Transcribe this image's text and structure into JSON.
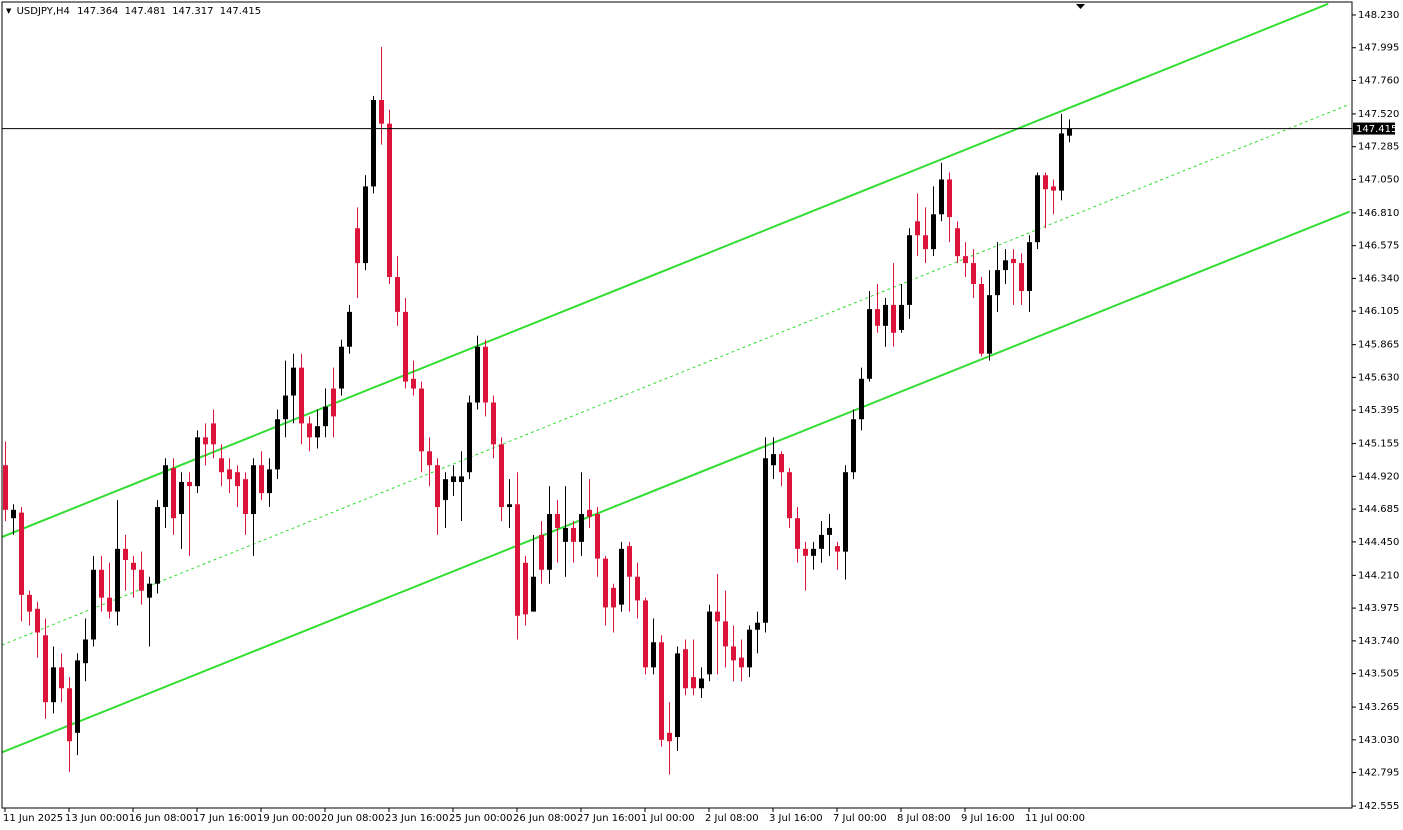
{
  "chart_data": {
    "type": "candlestick",
    "title": "USDJPY,H4",
    "categories": [
      "11 Jun 2025",
      null,
      null,
      null,
      null,
      null,
      null,
      null,
      "13 Jun 00:00",
      null,
      null,
      null,
      null,
      null,
      null,
      null,
      "16 Jun 08:00",
      null,
      null,
      null,
      null,
      null,
      null,
      null,
      "17 Jun 16:00",
      null,
      null,
      null,
      null,
      null,
      null,
      null,
      "19 Jun 00:00",
      null,
      null,
      null,
      null,
      null,
      null,
      null,
      "20 Jun 08:00",
      null,
      null,
      null,
      null,
      null,
      null,
      null,
      "23 Jun 16:00",
      null,
      null,
      null,
      null,
      null,
      null,
      null,
      "25 Jun 00:00",
      null,
      null,
      null,
      null,
      null,
      null,
      null,
      "26 Jun 08:00",
      null,
      null,
      null,
      null,
      null,
      null,
      null,
      "27 Jun 16:00",
      null,
      null,
      null,
      null,
      null,
      null,
      null,
      "1 Jul 00:00",
      null,
      null,
      null,
      null,
      null,
      null,
      null,
      "2 Jul 08:00",
      null,
      null,
      null,
      null,
      null,
      null,
      null,
      "3 Jul 16:00",
      null,
      null,
      null,
      null,
      null,
      null,
      null,
      "7 Jul 00:00",
      null,
      null,
      null,
      null,
      null,
      null,
      null,
      "8 Jul 08:00",
      null,
      null,
      null,
      null,
      null,
      null,
      null,
      "9 Jul 16:00",
      null,
      null,
      null,
      null,
      null,
      null,
      null,
      "11 Jul 00:00",
      null,
      null,
      null,
      null,
      null
    ],
    "open": [
      145.0,
      144.62,
      144.66,
      144.07,
      143.97,
      143.78,
      143.3,
      143.55,
      143.4,
      143.08,
      143.58,
      143.75,
      144.25,
      144.05,
      143.95,
      144.4,
      144.3,
      144.25,
      144.05,
      144.15,
      144.7,
      144.98,
      144.65,
      144.88,
      144.85,
      145.2,
      145.3,
      145.05,
      144.97,
      144.95,
      144.9,
      144.65,
      145.0,
      144.8,
      144.97,
      145.33,
      145.5,
      145.7,
      145.3,
      145.2,
      145.28,
      145.55,
      145.55,
      145.85,
      146.7,
      146.45,
      147.0,
      147.62,
      147.45,
      146.35,
      146.1,
      145.62,
      145.55,
      145.1,
      145.0,
      144.75,
      144.88,
      144.88,
      144.95,
      145.45,
      145.85,
      145.45,
      145.15,
      144.7,
      144.72,
      144.3,
      143.95,
      144.5,
      144.25,
      144.65,
      144.45,
      144.55,
      144.45,
      144.68,
      144.65,
      144.33,
      144.12,
      144.0,
      144.42,
      144.2,
      144.03,
      143.55,
      143.73,
      143.08,
      143.05,
      143.68,
      143.48,
      143.4,
      143.5,
      143.95,
      143.88,
      143.7,
      143.62,
      143.55,
      143.82,
      143.87,
      145.0,
      145.08,
      144.95,
      144.62,
      144.4,
      144.35,
      144.4,
      144.5,
      144.42,
      144.38,
      144.95,
      145.33,
      145.62,
      146.12,
      146.0,
      146.15,
      145.97,
      146.15,
      146.75,
      146.65,
      146.55,
      146.8,
      147.05,
      146.7,
      146.5,
      146.45,
      146.3,
      145.8,
      146.22,
      146.4,
      146.48,
      146.45,
      146.25,
      146.6,
      147.08,
      147.0,
      146.97,
      147.364
    ],
    "high": [
      145.17,
      144.72,
      144.7,
      144.1,
      144.02,
      143.9,
      143.7,
      143.65,
      143.48,
      143.65,
      143.9,
      144.35,
      144.35,
      144.3,
      144.75,
      144.5,
      144.35,
      144.38,
      144.2,
      144.75,
      145.05,
      145.05,
      144.95,
      144.95,
      145.25,
      145.3,
      145.4,
      145.15,
      145.05,
      145.0,
      144.95,
      145.05,
      145.1,
      145.05,
      145.4,
      145.75,
      145.8,
      145.8,
      145.35,
      145.4,
      145.55,
      145.7,
      145.9,
      146.15,
      146.85,
      147.08,
      147.65,
      148.0,
      147.55,
      146.5,
      146.2,
      145.75,
      145.6,
      145.2,
      145.05,
      144.95,
      145.0,
      145.1,
      145.5,
      145.93,
      145.9,
      145.5,
      145.2,
      144.9,
      144.95,
      144.35,
      144.5,
      144.6,
      144.85,
      144.75,
      144.85,
      144.6,
      144.95,
      144.9,
      144.7,
      144.35,
      144.15,
      144.45,
      144.45,
      144.3,
      144.05,
      143.9,
      143.78,
      143.3,
      143.7,
      143.75,
      143.75,
      143.55,
      144.0,
      144.22,
      144.1,
      143.85,
      143.75,
      143.85,
      143.95,
      145.2,
      145.2,
      145.1,
      144.98,
      144.7,
      144.45,
      144.45,
      144.6,
      144.65,
      144.45,
      145.0,
      145.4,
      145.7,
      146.25,
      146.3,
      146.2,
      146.45,
      146.3,
      146.7,
      146.95,
      146.85,
      147.0,
      147.17,
      147.1,
      146.75,
      146.6,
      146.55,
      146.35,
      146.4,
      146.6,
      146.55,
      146.55,
      146.52,
      146.65,
      147.1,
      147.1,
      147.05,
      147.52,
      147.481
    ],
    "low": [
      144.6,
      144.5,
      143.88,
      143.85,
      143.62,
      143.18,
      143.22,
      143.3,
      142.8,
      142.92,
      143.45,
      143.7,
      143.95,
      143.9,
      143.85,
      144.1,
      144.05,
      144.0,
      143.7,
      144.08,
      144.55,
      144.5,
      144.4,
      144.35,
      144.8,
      145.0,
      145.05,
      144.85,
      144.8,
      144.7,
      144.5,
      144.35,
      144.75,
      144.7,
      144.9,
      145.2,
      145.3,
      145.15,
      145.1,
      145.12,
      145.2,
      145.2,
      145.5,
      145.8,
      146.2,
      146.4,
      146.95,
      147.3,
      146.3,
      146.0,
      145.55,
      145.5,
      144.95,
      144.85,
      144.5,
      144.55,
      144.78,
      144.6,
      144.9,
      145.4,
      145.35,
      145.05,
      144.6,
      144.55,
      143.75,
      143.85,
      143.95,
      144.15,
      144.15,
      144.3,
      144.2,
      144.3,
      144.35,
      144.55,
      144.2,
      143.85,
      143.8,
      143.95,
      143.95,
      143.9,
      143.5,
      143.5,
      142.98,
      142.78,
      142.95,
      143.35,
      143.35,
      143.33,
      143.45,
      143.5,
      143.55,
      143.45,
      143.45,
      143.48,
      143.65,
      143.8,
      144.9,
      144.85,
      144.55,
      144.3,
      144.1,
      144.25,
      144.3,
      144.35,
      144.25,
      144.18,
      144.9,
      145.25,
      145.6,
      145.95,
      145.85,
      145.85,
      145.95,
      146.05,
      146.5,
      146.45,
      146.5,
      146.75,
      146.6,
      146.45,
      146.35,
      146.2,
      145.78,
      145.75,
      146.1,
      146.3,
      146.15,
      146.15,
      146.1,
      146.55,
      146.7,
      146.8,
      146.9,
      147.317
    ],
    "close": [
      144.68,
      144.68,
      144.07,
      143.95,
      143.8,
      143.3,
      143.55,
      143.4,
      143.02,
      143.6,
      143.75,
      144.25,
      144.05,
      143.95,
      144.4,
      144.32,
      144.25,
      144.1,
      144.15,
      144.7,
      145.0,
      144.62,
      144.88,
      144.85,
      145.2,
      145.15,
      145.15,
      144.95,
      144.9,
      144.85,
      144.65,
      145.0,
      144.8,
      144.97,
      145.33,
      145.5,
      145.7,
      145.3,
      145.2,
      145.28,
      145.42,
      145.35,
      145.85,
      146.1,
      146.45,
      147.0,
      147.62,
      147.45,
      146.35,
      146.1,
      145.6,
      145.55,
      145.1,
      145.0,
      144.7,
      144.9,
      144.92,
      144.92,
      145.45,
      145.85,
      145.45,
      145.15,
      144.7,
      144.72,
      143.92,
      143.93,
      144.2,
      144.25,
      144.65,
      144.55,
      144.55,
      144.45,
      144.65,
      144.63,
      144.33,
      143.98,
      143.98,
      144.4,
      144.2,
      144.03,
      143.55,
      143.73,
      143.03,
      143.02,
      143.65,
      143.4,
      143.4,
      143.47,
      143.95,
      143.88,
      143.7,
      143.6,
      143.55,
      143.82,
      143.87,
      145.05,
      145.08,
      144.95,
      144.62,
      144.4,
      144.35,
      144.4,
      144.5,
      144.55,
      144.38,
      144.95,
      145.33,
      145.62,
      146.12,
      146.0,
      146.15,
      145.95,
      146.15,
      146.65,
      146.65,
      146.55,
      146.8,
      147.05,
      146.78,
      146.5,
      146.45,
      146.3,
      145.8,
      146.22,
      146.4,
      146.47,
      146.45,
      146.25,
      146.6,
      147.08,
      146.98,
      146.97,
      147.38,
      147.415
    ],
    "up_color": "#000000",
    "down_color": "#dc143c",
    "ylim": [
      142.541,
      148.323
    ],
    "yticks": [
      {
        "value": 148.23,
        "label": "148.230"
      },
      147.995,
      {
        "value": 147.76,
        "label": "147.760"
      },
      {
        "value": 147.52,
        "label": "147.520"
      },
      147.285,
      {
        "value": 147.05,
        "label": "147.050"
      },
      {
        "value": 146.81,
        "label": "146.810"
      },
      146.575,
      {
        "value": 146.34,
        "label": "146.340"
      },
      146.105,
      145.865,
      {
        "value": 145.63,
        "label": "145.630"
      },
      145.395,
      145.155,
      {
        "value": 144.92,
        "label": "144.920"
      },
      144.685,
      {
        "value": 144.45,
        "label": "144.450"
      },
      {
        "value": 144.21,
        "label": "144.210"
      },
      143.975,
      {
        "value": 143.74,
        "label": "143.740"
      },
      143.505,
      143.265,
      {
        "value": 143.03,
        "label": "143.030"
      },
      142.795,
      142.555
    ],
    "grid": false,
    "lines": [
      {
        "x": [
          -0.375,
          165.4
        ],
        "values": [
          144.485,
          148.31
        ],
        "color": "#33dd33",
        "dashed": false
      },
      {
        "x": [
          -0.375,
          168.1
        ],
        "values": [
          143.71,
          147.59
        ],
        "color": "#33dd33",
        "dashed": true
      },
      {
        "x": [
          -0.375,
          168.1
        ],
        "values": [
          142.94,
          146.82
        ],
        "color": "#33dd33",
        "dashed": false
      }
    ]
  }
}
